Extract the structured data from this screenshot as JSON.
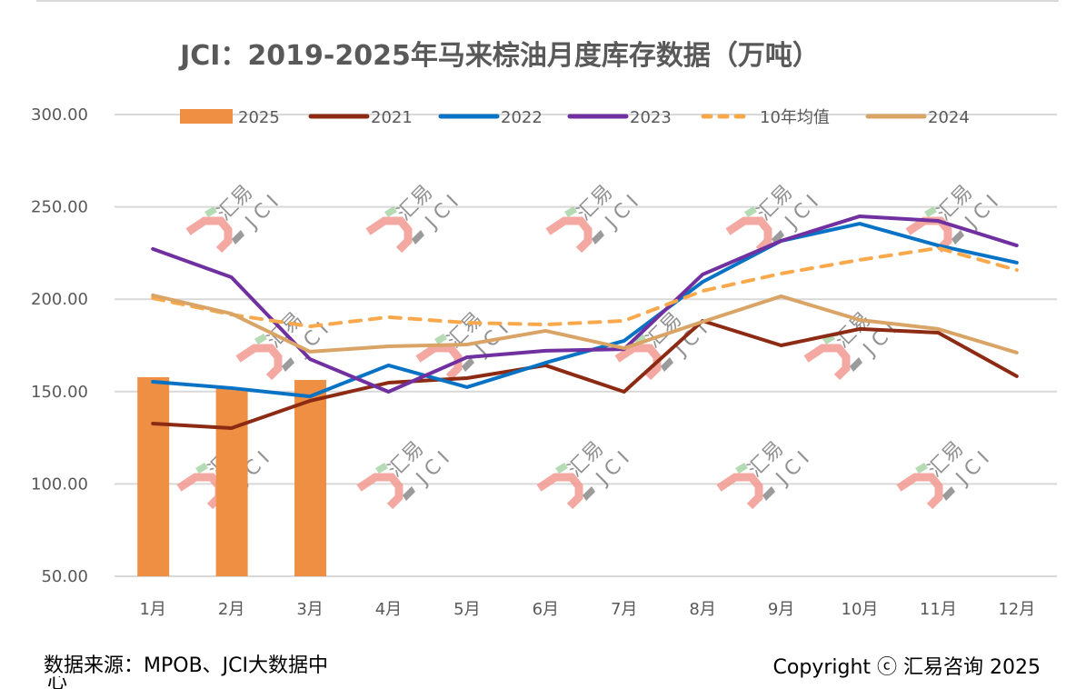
{
  "chart_data": {
    "type": "bar+line",
    "title": "JCI：2019-2025年马来棕油月度库存数据（万吨）",
    "categories": [
      "1月",
      "2月",
      "3月",
      "4月",
      "5月",
      "6月",
      "7月",
      "8月",
      "9月",
      "10月",
      "11月",
      "12月"
    ],
    "ylim": [
      50,
      300
    ],
    "yticks": [
      "300.00",
      "250.00",
      "200.00",
      "150.00",
      "100.00",
      "50.00"
    ],
    "ytick_values": [
      300,
      250,
      200,
      150,
      100,
      50
    ],
    "grid": true,
    "legend_position": "top",
    "bar_series": [
      {
        "name": "2025",
        "color": "#ef8f44",
        "values": [
          157.8,
          151.9,
          156.3,
          null,
          null,
          null,
          null,
          null,
          null,
          null,
          null,
          null
        ]
      }
    ],
    "series": [
      {
        "name": "2021",
        "color": "#8c2a13",
        "style": "solid",
        "values": [
          132.7,
          130.2,
          145.0,
          154.8,
          157.3,
          164.2,
          149.9,
          188.3,
          175.0,
          183.9,
          181.9,
          158.3
        ]
      },
      {
        "name": "2022",
        "color": "#0872c4",
        "style": "solid",
        "values": [
          155.3,
          151.9,
          147.4,
          164.2,
          152.4,
          165.6,
          177.5,
          209.4,
          231.6,
          240.9,
          229.1,
          219.8
        ]
      },
      {
        "name": "2023",
        "color": "#7030a0",
        "style": "solid",
        "values": [
          227.2,
          211.9,
          167.6,
          149.9,
          168.6,
          172.1,
          173.0,
          213.4,
          231.6,
          244.9,
          242.4,
          229.1
        ]
      },
      {
        "name": "10年均值",
        "color": "#f9a94b",
        "style": "dashed",
        "values": [
          200.6,
          191.7,
          185.3,
          190.3,
          187.3,
          186.3,
          188.3,
          204.5,
          213.9,
          221.3,
          227.7,
          215.8
        ]
      },
      {
        "name": "2024",
        "color": "#d9a466",
        "style": "solid",
        "values": [
          202.1,
          192.2,
          171.6,
          174.5,
          175.5,
          182.9,
          173.5,
          187.8,
          201.6,
          188.8,
          183.9,
          171.1
        ]
      }
    ],
    "legend_order": [
      "2025",
      "2021",
      "2022",
      "2023",
      "10年均值",
      "2024"
    ],
    "watermark": {
      "text_top": "汇易",
      "text_bottom": "JCI"
    }
  },
  "footer": {
    "source": "数据来源：MPOB、JCI大数据中",
    "source_cont": "心",
    "copyright": "Copyright ⓒ 汇易咨询 2025"
  }
}
